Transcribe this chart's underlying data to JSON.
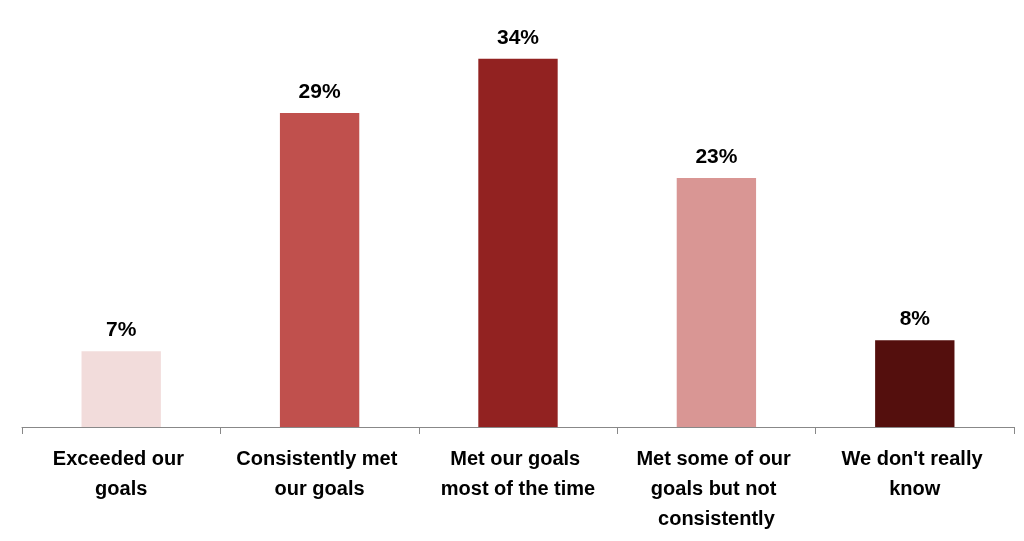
{
  "chart_data": {
    "type": "bar",
    "categories": [
      "Exceeded our goals",
      "Consistently met our goals",
      "Met our goals most of the time",
      "Met some of our goals but not consistently",
      "We don't really know"
    ],
    "values": [
      7,
      29,
      34,
      23,
      8
    ],
    "value_labels": [
      "7%",
      "29%",
      "34%",
      "23%",
      "8%"
    ],
    "colors": [
      "#f2dcdb",
      "#c0504d",
      "#922221",
      "#d99694",
      "#540f0d"
    ]
  }
}
